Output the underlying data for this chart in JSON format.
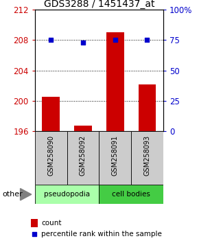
{
  "title": "GDS3288 / 1451437_at",
  "samples": [
    "GSM258090",
    "GSM258092",
    "GSM258091",
    "GSM258093"
  ],
  "count_values": [
    200.5,
    196.7,
    209.0,
    202.2
  ],
  "percentile_values": [
    75,
    73,
    75,
    75
  ],
  "ylim_left": [
    196,
    212
  ],
  "ylim_right": [
    0,
    100
  ],
  "yticks_left": [
    196,
    200,
    204,
    208,
    212
  ],
  "yticks_right": [
    0,
    25,
    50,
    75,
    100
  ],
  "ytick_labels_right": [
    "0",
    "25",
    "50",
    "75",
    "100%"
  ],
  "bar_color": "#cc0000",
  "dot_color": "#0000cc",
  "bar_base": 196,
  "sample_box_color": "#cccccc",
  "groups": [
    {
      "label": "pseudopodia",
      "color": "#aaffaa",
      "start": 0,
      "end": 1
    },
    {
      "label": "cell bodies",
      "color": "#44cc44",
      "start": 2,
      "end": 3
    }
  ],
  "other_label": "other",
  "legend_count_label": "count",
  "legend_pct_label": "percentile rank within the sample",
  "title_fontsize": 10,
  "axis_color_left": "#cc0000",
  "axis_color_right": "#0000cc",
  "bg_color": "#ffffff"
}
